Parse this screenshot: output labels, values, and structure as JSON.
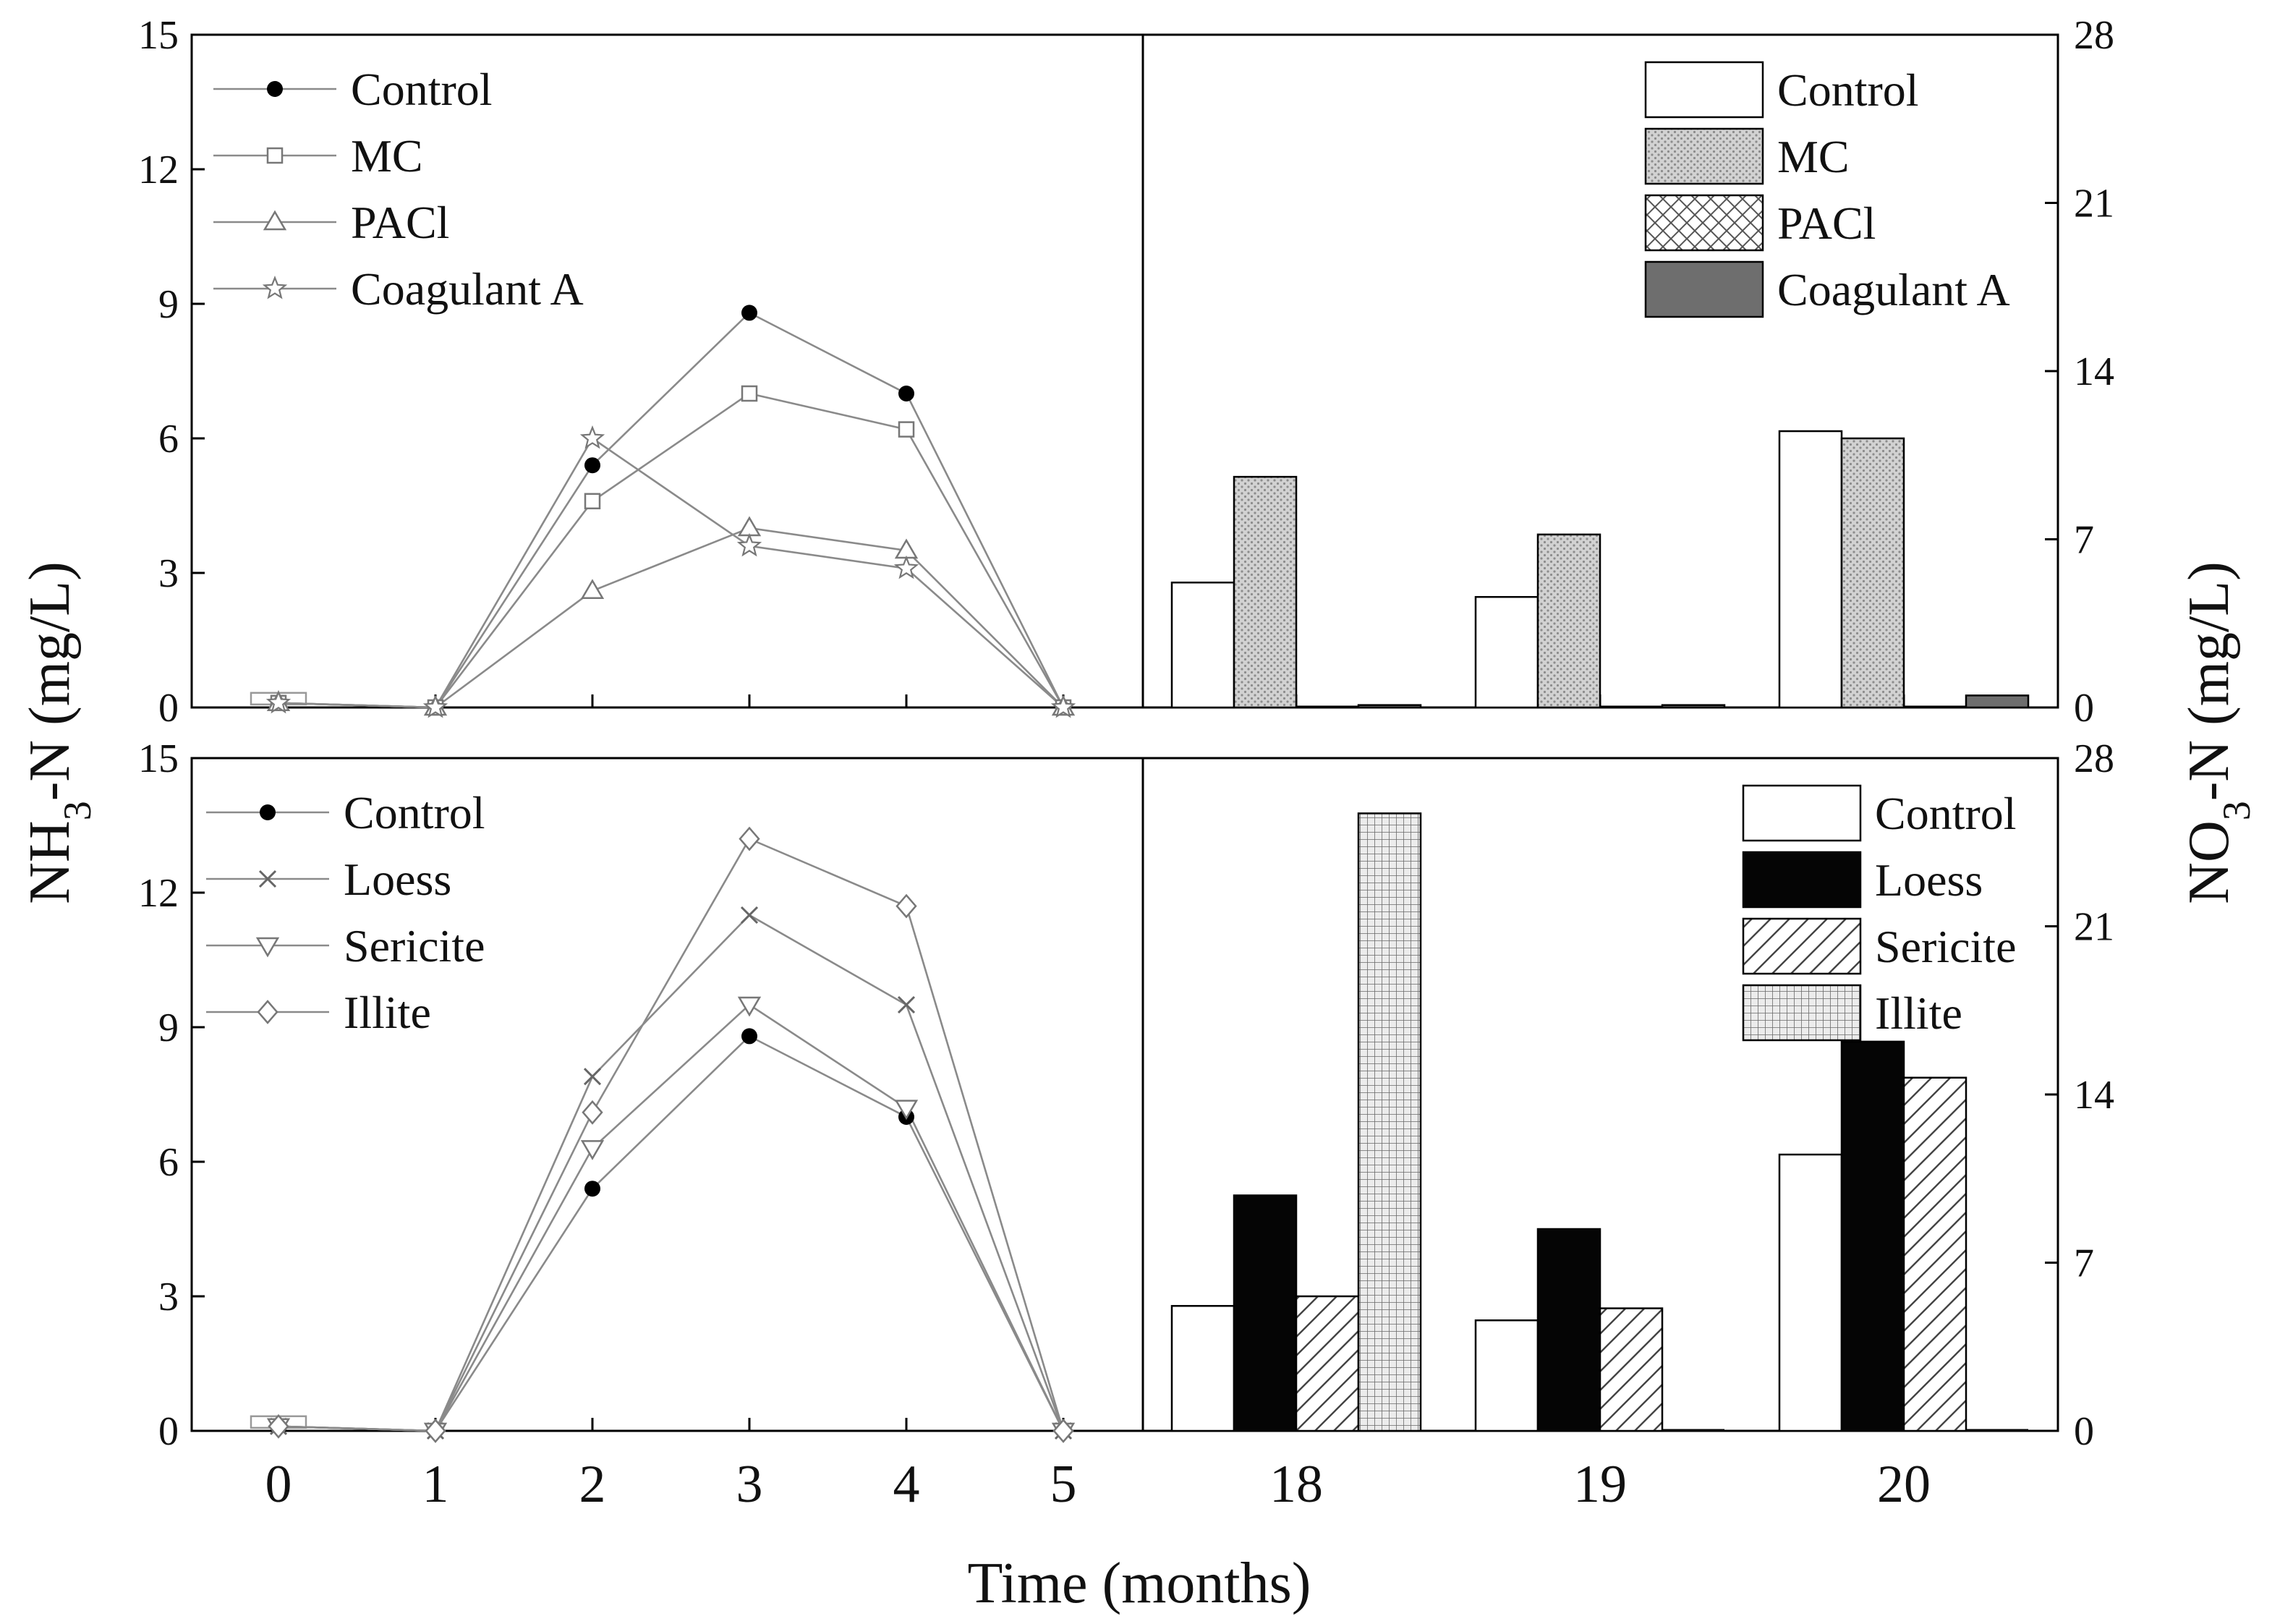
{
  "chart_data": [
    {
      "id": "top",
      "type": "line+bar",
      "ylabel_left": {
        "main": "NH",
        "sub": "3",
        "rest": "-N (mg/L)"
      },
      "ylabel_right": {
        "main": "NO",
        "sub": "3",
        "rest": "-N (mg/L)"
      },
      "xlabel": "Time (months)",
      "x_left": [
        0,
        1,
        2,
        3,
        4,
        5
      ],
      "x_left_labels": [
        "0",
        "1",
        "2",
        "3",
        "4",
        "5"
      ],
      "y_left_ticks": [
        "0",
        "3",
        "6",
        "9",
        "12",
        "15"
      ],
      "ylim_left": [
        0,
        15
      ],
      "line_series": [
        {
          "name": "Control",
          "marker": "circle-filled",
          "values": [
            0.1,
            0,
            5.4,
            8.8,
            7.0,
            0
          ]
        },
        {
          "name": "MC",
          "marker": "square-open",
          "values": [
            0.1,
            0,
            4.6,
            7.0,
            6.2,
            0
          ]
        },
        {
          "name": "PACl",
          "marker": "triangle-up-open",
          "values": [
            0.1,
            0,
            2.6,
            4.0,
            3.5,
            0
          ]
        },
        {
          "name": "Coagulant A",
          "marker": "star-open",
          "values": [
            0.1,
            0,
            6.0,
            3.6,
            3.1,
            0
          ]
        }
      ],
      "bar_categories": [
        "18",
        "19",
        "20"
      ],
      "y_right_ticks": [
        "0",
        "7",
        "14",
        "21",
        "28"
      ],
      "ylim_right": [
        0,
        28
      ],
      "bar_series": [
        {
          "name": "Control",
          "fill": "white",
          "values": [
            5.2,
            4.6,
            11.5
          ]
        },
        {
          "name": "MC",
          "fill": "dots",
          "values": [
            9.6,
            7.2,
            11.2
          ]
        },
        {
          "name": "PACl",
          "fill": "crosshatch",
          "values": [
            0,
            0,
            0
          ]
        },
        {
          "name": "Coagulant A",
          "fill": "darkgray",
          "values": [
            0.1,
            0.1,
            0.5
          ]
        }
      ]
    },
    {
      "id": "bottom",
      "type": "line+bar",
      "x_left": [
        0,
        1,
        2,
        3,
        4,
        5
      ],
      "x_left_labels": [
        "0",
        "1",
        "2",
        "3",
        "4",
        "5"
      ],
      "y_left_ticks": [
        "0",
        "3",
        "6",
        "9",
        "12",
        "15"
      ],
      "ylim_left": [
        0,
        15
      ],
      "line_series": [
        {
          "name": "Control",
          "marker": "circle-filled",
          "values": [
            0.1,
            0,
            5.4,
            8.8,
            7.0,
            0
          ]
        },
        {
          "name": "Loess",
          "marker": "x",
          "values": [
            0.1,
            0,
            7.9,
            11.5,
            9.5,
            0
          ]
        },
        {
          "name": "Sericite",
          "marker": "triangle-down-open",
          "values": [
            0.1,
            0,
            6.3,
            9.5,
            7.2,
            0
          ]
        },
        {
          "name": "Illite",
          "marker": "diamond-open",
          "values": [
            0.1,
            0,
            7.1,
            13.2,
            11.7,
            0
          ]
        }
      ],
      "bar_categories": [
        "18",
        "19",
        "20"
      ],
      "y_right_ticks": [
        "0",
        "7",
        "14",
        "21",
        "28"
      ],
      "ylim_right": [
        0,
        28
      ],
      "bar_series": [
        {
          "name": "Control",
          "fill": "white",
          "values": [
            5.2,
            4.6,
            11.5
          ]
        },
        {
          "name": "Loess",
          "fill": "black",
          "values": [
            9.8,
            8.4,
            16.2
          ]
        },
        {
          "name": "Sericite",
          "fill": "diagonal",
          "values": [
            5.6,
            5.1,
            14.7
          ]
        },
        {
          "name": "Illite",
          "fill": "grid",
          "values": [
            25.7,
            0,
            0
          ]
        }
      ]
    }
  ]
}
